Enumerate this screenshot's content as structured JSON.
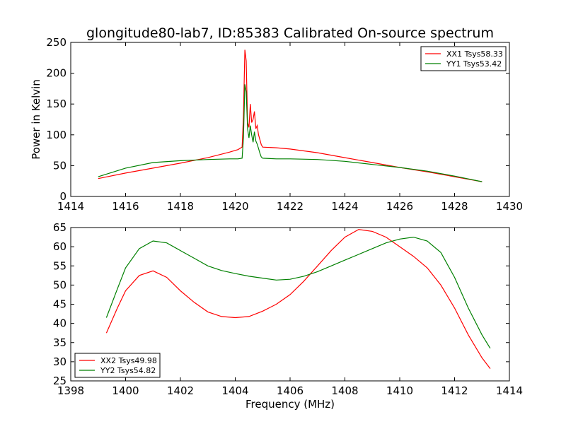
{
  "chart_data": [
    {
      "type": "line",
      "title": "glongitude80-lab7, ID:85383 Calibrated On-source spectrum",
      "xlabel": "",
      "ylabel": "Power in Kelvin",
      "xlim": [
        1414,
        1430
      ],
      "ylim": [
        0,
        250
      ],
      "xticks": [
        "1414",
        "1416",
        "1418",
        "1420",
        "1422",
        "1424",
        "1426",
        "1428",
        "1430"
      ],
      "yticks": [
        "0",
        "50",
        "100",
        "150",
        "200",
        "250"
      ],
      "grid": false,
      "legend_position": "top-right",
      "series": [
        {
          "name": "XX1 Tsys58.33",
          "color": "#ff0000",
          "x": [
            1415.0,
            1416.0,
            1417.0,
            1418.0,
            1419.0,
            1419.8,
            1420.1,
            1420.25,
            1420.3,
            1420.35,
            1420.4,
            1420.45,
            1420.5,
            1420.55,
            1420.6,
            1420.65,
            1420.7,
            1420.75,
            1420.8,
            1420.85,
            1420.9,
            1420.95,
            1421.0,
            1421.5,
            1422.0,
            1423.0,
            1424.0,
            1425.0,
            1426.0,
            1427.0,
            1428.0,
            1429.0
          ],
          "y": [
            29,
            38,
            46,
            54,
            63,
            72,
            76,
            80,
            130,
            238,
            220,
            120,
            112,
            150,
            120,
            125,
            138,
            110,
            115,
            100,
            92,
            84,
            80,
            79,
            77,
            71,
            63,
            55,
            47,
            40,
            32,
            24
          ]
        },
        {
          "name": "YY1 Tsys53.42",
          "color": "#008000",
          "x": [
            1415.0,
            1416.0,
            1417.0,
            1418.0,
            1419.0,
            1419.8,
            1420.1,
            1420.25,
            1420.3,
            1420.35,
            1420.4,
            1420.45,
            1420.5,
            1420.55,
            1420.6,
            1420.65,
            1420.7,
            1420.75,
            1420.8,
            1420.85,
            1420.9,
            1420.95,
            1421.0,
            1421.5,
            1422.0,
            1423.0,
            1424.0,
            1425.0,
            1426.0,
            1427.0,
            1428.0,
            1429.0
          ],
          "y": [
            32,
            46,
            55,
            58,
            60,
            61,
            61,
            62,
            95,
            182,
            170,
            110,
            95,
            115,
            100,
            88,
            105,
            90,
            85,
            78,
            70,
            64,
            62,
            61,
            61,
            60,
            57,
            52,
            47,
            41,
            33,
            24
          ]
        }
      ]
    },
    {
      "type": "line",
      "title": "",
      "xlabel": "Frequency (MHz)",
      "ylabel": "",
      "xlim": [
        1398,
        1414
      ],
      "ylim": [
        25,
        65
      ],
      "xticks": [
        "1398",
        "1400",
        "1402",
        "1404",
        "1406",
        "1408",
        "1410",
        "1412",
        "1414"
      ],
      "yticks": [
        "25",
        "30",
        "35",
        "40",
        "45",
        "50",
        "55",
        "60",
        "65"
      ],
      "grid": false,
      "legend_position": "bottom-left",
      "series": [
        {
          "name": "XX2 Tsys49.98",
          "color": "#ff0000",
          "x": [
            1399.3,
            1399.7,
            1400.0,
            1400.5,
            1401.0,
            1401.5,
            1402.0,
            1402.5,
            1403.0,
            1403.5,
            1404.0,
            1404.5,
            1405.0,
            1405.5,
            1406.0,
            1406.5,
            1407.0,
            1407.5,
            1408.0,
            1408.5,
            1409.0,
            1409.5,
            1410.0,
            1410.5,
            1411.0,
            1411.5,
            1412.0,
            1412.5,
            1413.0,
            1413.3
          ],
          "y": [
            37.5,
            44,
            48.5,
            52.5,
            53.7,
            52.0,
            48.5,
            45.5,
            43.0,
            41.8,
            41.5,
            41.8,
            43.2,
            45.0,
            47.5,
            51.0,
            55.0,
            59.0,
            62.5,
            64.5,
            64.0,
            62.5,
            60.0,
            57.5,
            54.5,
            50.0,
            44.0,
            37.0,
            31.0,
            28.2
          ]
        },
        {
          "name": "YY2 Tsys54.82",
          "color": "#008000",
          "x": [
            1399.3,
            1399.7,
            1400.0,
            1400.5,
            1401.0,
            1401.5,
            1402.0,
            1402.5,
            1403.0,
            1403.5,
            1404.0,
            1404.5,
            1405.0,
            1405.5,
            1406.0,
            1406.5,
            1407.0,
            1407.5,
            1408.0,
            1408.5,
            1409.0,
            1409.5,
            1410.0,
            1410.5,
            1411.0,
            1411.5,
            1412.0,
            1412.5,
            1413.0,
            1413.3
          ],
          "y": [
            41.5,
            49,
            54.5,
            59.5,
            61.5,
            61.0,
            59.0,
            57.0,
            55.0,
            53.8,
            53.0,
            52.3,
            51.8,
            51.3,
            51.5,
            52.3,
            53.5,
            55.0,
            56.5,
            58.0,
            59.5,
            61.0,
            62.0,
            62.5,
            61.5,
            58.5,
            52.0,
            44.0,
            37.0,
            33.5
          ]
        }
      ]
    }
  ]
}
